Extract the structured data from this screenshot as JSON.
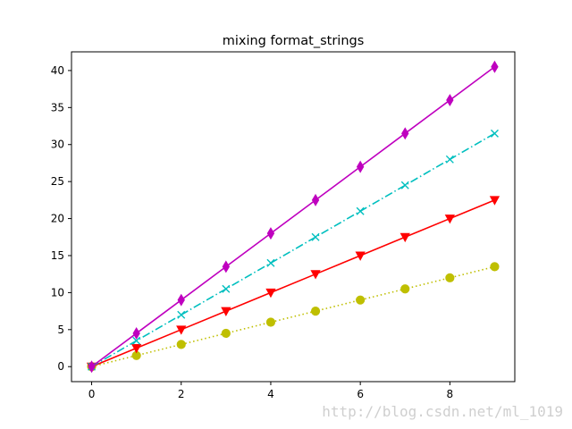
{
  "chart_data": {
    "type": "line",
    "title": "mixing format_strings",
    "xlabel": "",
    "ylabel": "",
    "xlim": [
      -0.45,
      9.45
    ],
    "ylim": [
      -2.025,
      42.525
    ],
    "xticks": [
      0,
      2,
      4,
      6,
      8
    ],
    "yticks": [
      0,
      5,
      10,
      15,
      20,
      25,
      30,
      35,
      40
    ],
    "grid": false,
    "x": [
      0,
      1,
      2,
      3,
      4,
      5,
      6,
      7,
      8,
      9
    ],
    "series": [
      {
        "color": "#bfbf00",
        "linestyle": "dotted",
        "marker": "circle",
        "values": [
          0,
          1.5,
          3,
          4.5,
          6,
          7.5,
          9,
          10.5,
          12,
          13.5
        ]
      },
      {
        "color": "#ff0000",
        "linestyle": "solid",
        "marker": "triangle-down",
        "values": [
          0,
          2.5,
          5,
          7.5,
          10,
          12.5,
          15,
          17.5,
          20,
          22.5
        ]
      },
      {
        "color": "#00bfbf",
        "linestyle": "dashdot",
        "marker": "x",
        "values": [
          0,
          3.5,
          7,
          10.5,
          14,
          17.5,
          21,
          24.5,
          28,
          31.5
        ]
      },
      {
        "color": "#bf00bf",
        "linestyle": "solid",
        "marker": "thin-diamond",
        "values": [
          0,
          4.5,
          9,
          13.5,
          18,
          22.5,
          27,
          31.5,
          36,
          40.5
        ]
      }
    ]
  },
  "watermark": "http://blog.csdn.net/ml_1019"
}
